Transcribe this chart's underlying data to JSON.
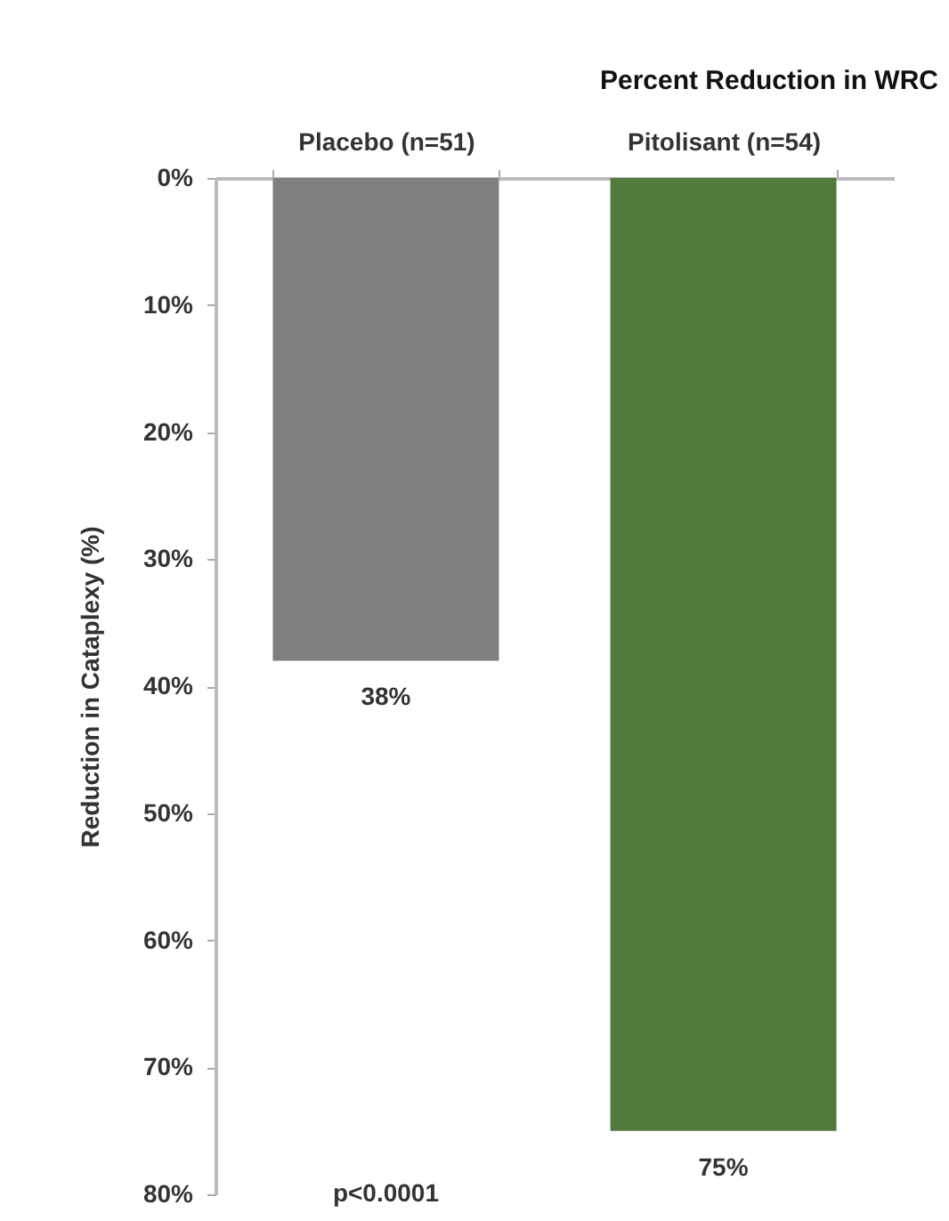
{
  "chart_data": {
    "type": "bar",
    "title": "Percent Reduction in WRC",
    "ylabel": "Reduction in Cataplexy (%)",
    "categories": [
      "Placebo (n=51)",
      "Pitolisant (n=54)"
    ],
    "values": [
      38,
      75
    ],
    "colors": [
      "#7f7f7f",
      "#527a3c"
    ],
    "value_labels": [
      "38%",
      "75%"
    ],
    "ylim": [
      80,
      0
    ],
    "yticks": [
      {
        "value": 0,
        "label": "0%"
      },
      {
        "value": 10,
        "label": "10%"
      },
      {
        "value": 20,
        "label": "20%"
      },
      {
        "value": 30,
        "label": "30%"
      },
      {
        "value": 40,
        "label": "40%"
      },
      {
        "value": 50,
        "label": "50%"
      },
      {
        "value": 60,
        "label": "60%"
      },
      {
        "value": 70,
        "label": "70%"
      },
      {
        "value": 80,
        "label": "80%"
      }
    ],
    "annotations": [
      "p<0.0001"
    ],
    "grid": false
  }
}
